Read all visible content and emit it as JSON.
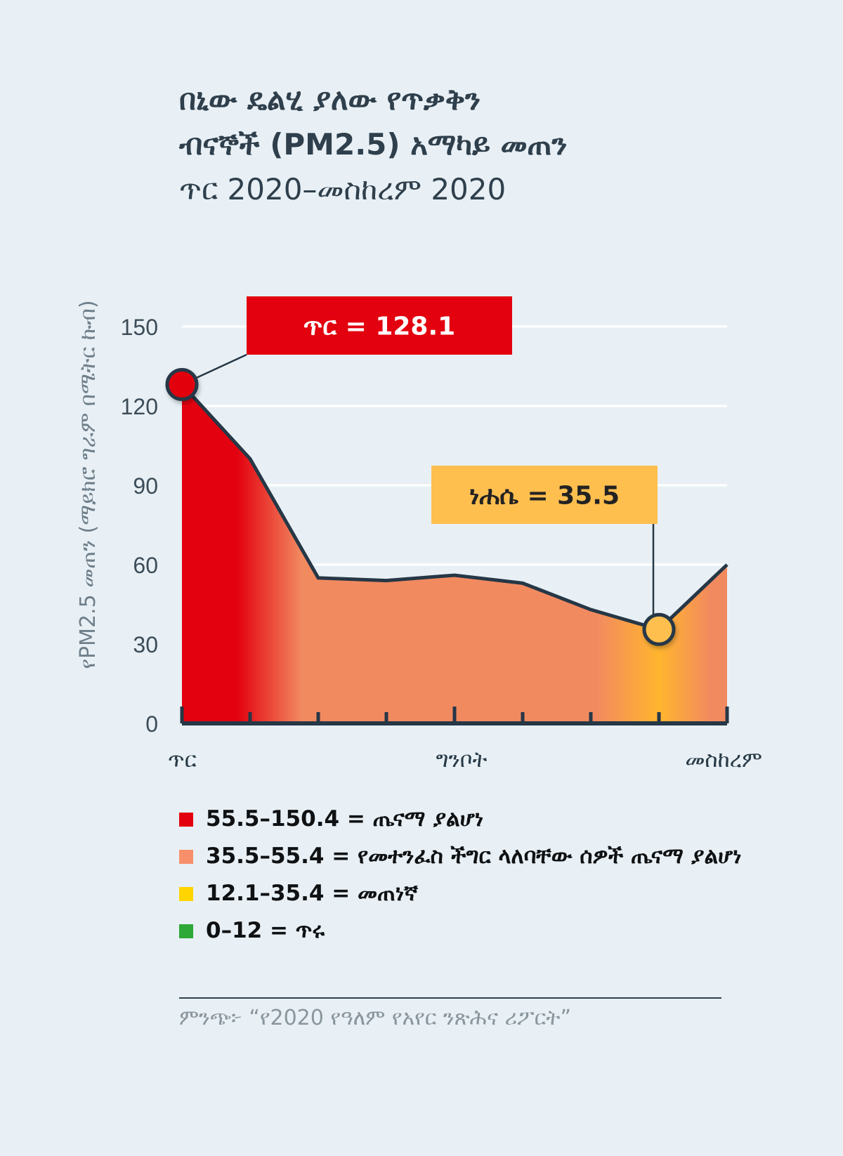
{
  "title": {
    "line1": "በኒው ዴልሂ ያለው የጥቃቅን",
    "line2": "ብናኞች (PM2.5) አማካይ መጠን",
    "subtitle": "ጥር 2020–መስከረም 2020"
  },
  "chart_data": {
    "type": "area",
    "ylabel": "የPM2.5 መጠን (ማይክሮ ግራም በሜትር ኩብ)",
    "ylim": [
      0,
      150
    ],
    "yticks": [
      "0",
      "30",
      "60",
      "90",
      "120",
      "150"
    ],
    "xlabels": [
      "ጥር",
      "ግንቦት",
      "መስከረም"
    ],
    "x_label_index": [
      0,
      4,
      8
    ],
    "points": [
      128.1,
      100,
      55,
      54,
      56,
      53,
      43,
      35.5,
      60
    ],
    "grid": true,
    "annotations": [
      {
        "label": "ጥር = 128.1",
        "index": 0,
        "value": 128.1,
        "color": "#e3000f",
        "text_color": "#ffffff"
      },
      {
        "label": "ነሐሴ = 35.5",
        "index": 7,
        "value": 35.5,
        "color": "#ffbf4f",
        "text_color": "#222222"
      }
    ],
    "colors": {
      "line": "#263746",
      "red": "#e3000f",
      "orange": "#f28a60",
      "yellow": "#ffb52e",
      "grid": "#ffffff",
      "axis": "#263746"
    }
  },
  "legend": [
    {
      "text": "55.5–150.4 = ጤናማ ያልሆነ",
      "color": "#e3000f"
    },
    {
      "text": "35.5–55.4 = የመተንፈስ ችግር ላለባቸው ሰዎች ጤናማ ያልሆነ",
      "color": "#f7906a"
    },
    {
      "text": "12.1–35.4 = መጠነኛ",
      "color": "#ffd400"
    },
    {
      "text": "0–12 = ጥሩ",
      "color": "#2ea836"
    }
  ],
  "source": "ምንጭ፦ “የ2020 የዓለም የአየር ንጽሕና ሪፖርት”"
}
